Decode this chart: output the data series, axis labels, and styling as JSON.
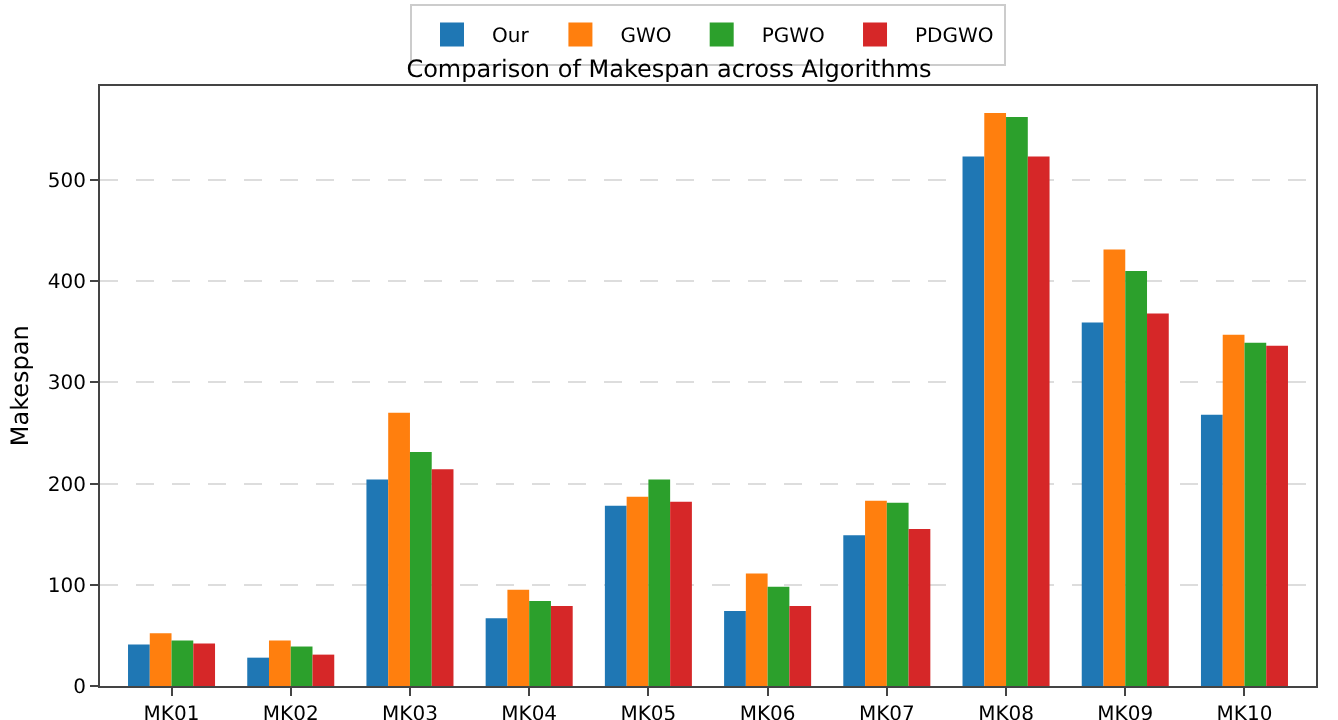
{
  "chart_data": {
    "type": "bar",
    "title": "Comparison of Makespan across Algorithms",
    "ylabel": "Makespan",
    "categories": [
      "MK01",
      "MK02",
      "MK03",
      "MK04",
      "MK05",
      "MK06",
      "MK07",
      "MK08",
      "MK09",
      "MK10"
    ],
    "series": [
      {
        "name": "Our",
        "color": "#1f77b4",
        "values": [
          41,
          28,
          204,
          67,
          178,
          74,
          149,
          523,
          359,
          268
        ]
      },
      {
        "name": "GWO",
        "color": "#ff7f0e",
        "values": [
          52,
          45,
          270,
          95,
          187,
          111,
          183,
          566,
          431,
          347
        ]
      },
      {
        "name": "PGWO",
        "color": "#2ca02c",
        "values": [
          45,
          39,
          231,
          84,
          204,
          98,
          181,
          562,
          410,
          339
        ]
      },
      {
        "name": "PDGWO",
        "color": "#d62728",
        "values": [
          42,
          31,
          214,
          79,
          182,
          79,
          155,
          523,
          368,
          336
        ]
      }
    ],
    "ylim": [
      0,
      593
    ],
    "yticks": [
      0,
      100,
      200,
      300,
      400,
      500
    ],
    "grid": "y",
    "legend": "top"
  }
}
